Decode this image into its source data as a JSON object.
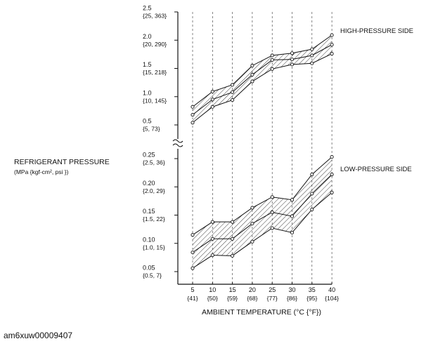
{
  "chart_data": {
    "type": "area",
    "xlabel": "AMBIENT TEMPERATURE  (°C {°F})",
    "ylabel": "REFRIGERANT PRESSURE",
    "ylabel_units": "(MPa {kgf-cm², psi })",
    "x": [
      5,
      10,
      15,
      20,
      25,
      30,
      35,
      40
    ],
    "x_tick_labels": [
      "5",
      "10",
      "15",
      "20",
      "25",
      "30",
      "35",
      "40"
    ],
    "x_tick_sublabels": [
      "{41}",
      "{50}",
      "{59}",
      "{68}",
      "{77}",
      "{86}",
      "{95}",
      "{104}"
    ],
    "high_axis": {
      "ylim": [
        0.35,
        2.5
      ],
      "ticks": [
        {
          "value": 2.5,
          "label": "2.5",
          "sub": "{25, 363}"
        },
        {
          "value": 2.0,
          "label": "2.0",
          "sub": "{20, 290}"
        },
        {
          "value": 1.5,
          "label": "1.5",
          "sub": "{15, 218}"
        },
        {
          "value": 1.0,
          "label": "1.0",
          "sub": "{10, 145}"
        },
        {
          "value": 0.5,
          "label": "0.5",
          "sub": "{5, 73}"
        }
      ]
    },
    "low_axis": {
      "ylim": [
        0.03,
        0.25
      ],
      "ticks": [
        {
          "value": 0.25,
          "label": "0.25",
          "sub": "{2.5, 36}"
        },
        {
          "value": 0.2,
          "label": "0.20",
          "sub": "{2.0, 29}"
        },
        {
          "value": 0.15,
          "label": "0.15",
          "sub": "{1.5, 22}"
        },
        {
          "value": 0.1,
          "label": "0.10",
          "sub": "{1.0, 15}"
        },
        {
          "value": 0.05,
          "label": "0.05",
          "sub": "{0.5, 7}"
        }
      ]
    },
    "bands": [
      {
        "name": "HIGH-PRESSURE SIDE",
        "axis": "high",
        "upper": [
          0.82,
          1.09,
          1.21,
          1.55,
          1.73,
          1.77,
          1.84,
          2.09
        ],
        "middle": [
          0.68,
          0.95,
          1.08,
          1.39,
          1.65,
          1.66,
          1.73,
          1.92
        ],
        "lower": [
          0.54,
          0.82,
          0.94,
          1.27,
          1.49,
          1.57,
          1.59,
          1.76
        ]
      },
      {
        "name": "LOW-PRESSURE SIDE",
        "axis": "low",
        "upper": [
          0.115,
          0.138,
          0.138,
          0.163,
          0.182,
          0.177,
          0.222,
          0.253
        ],
        "middle": [
          0.084,
          0.108,
          0.108,
          0.135,
          0.155,
          0.148,
          0.188,
          0.222
        ],
        "lower": [
          0.056,
          0.079,
          0.078,
          0.103,
          0.127,
          0.119,
          0.16,
          0.19
        ]
      }
    ],
    "grid": "vertical dashed lines at each x tick",
    "pattern": "diagonal hatching",
    "axis_break": "between 0.5 and 0.25"
  },
  "figure_code": "am6xuw00009407"
}
